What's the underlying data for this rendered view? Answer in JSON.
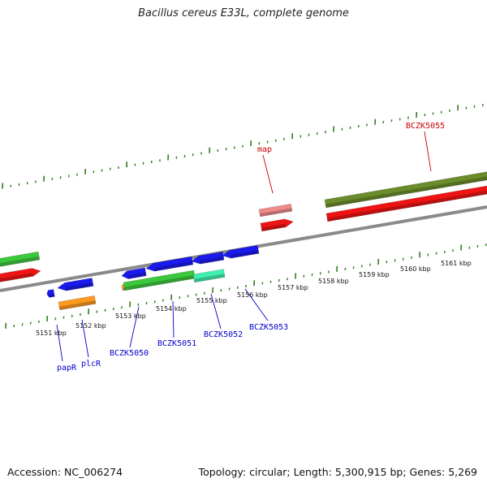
{
  "title": "Bacillus cereus E33L, complete genome",
  "footer": {
    "accession": "Accession: NC_006274",
    "stats": "Topology: circular; Length: 5,300,915 bp; Genes: 5,269"
  },
  "colors": {
    "backbone": "#8a8a8a",
    "ticks": "#2f7d1e",
    "blue_gene": "#1a1aee",
    "green_gene": "#3cc83c",
    "red_gene": "#ee1414",
    "orange_gene": "#ff9a1e",
    "olive_gene": "#6b8c2b",
    "pink_gene": "#f08a8a",
    "teal_gene": "#40f0b0",
    "blue_label": "#0000cc",
    "red_label": "#cc0000"
  },
  "scale_labels": [
    "5151 kbp",
    "5152 kbp",
    "5153 kbp",
    "5154 kbp",
    "5155 kbp",
    "5156 kbp",
    "5157 kbp",
    "5158 kbp",
    "5159 kbp",
    "5160 kbp",
    "5161 kbp"
  ],
  "gene_labels": [
    {
      "text": "papR",
      "color": "blue"
    },
    {
      "text": "plcR",
      "color": "blue"
    },
    {
      "text": "BCZK5050",
      "color": "blue"
    },
    {
      "text": "BCZK5051",
      "color": "blue"
    },
    {
      "text": "BCZK5052",
      "color": "blue"
    },
    {
      "text": "BCZK5053",
      "color": "blue"
    },
    {
      "text": "map",
      "color": "red"
    },
    {
      "text": "BCZK5055",
      "color": "red"
    }
  ]
}
